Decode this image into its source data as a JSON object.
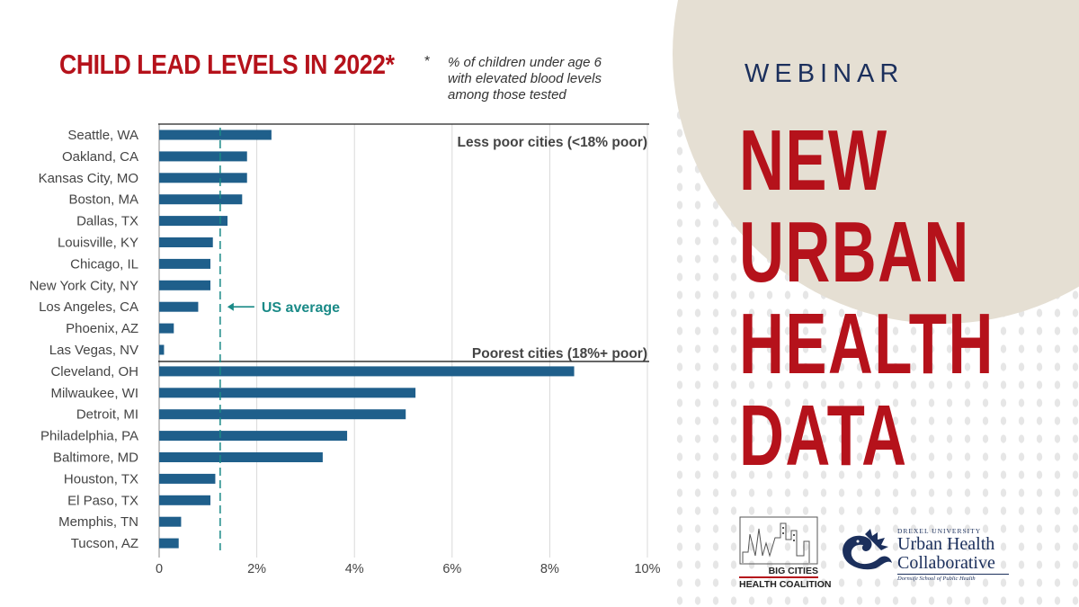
{
  "colors": {
    "title_red": "#b5121b",
    "bar_blue": "#1f5f8b",
    "avg_teal": "#1a8a87",
    "navy": "#1b2f5c",
    "beige": "#e5dfd3",
    "dots": "#e6e6e6",
    "grid": "#d9d9d9",
    "text_gray": "#444444"
  },
  "chart_title": "CHILD LEAD LEVELS IN 2022*",
  "footnote": {
    "mark": "*",
    "lines": [
      "% of children under age 6",
      "with elevated blood levels",
      "among those tested"
    ]
  },
  "chart_data": {
    "type": "bar",
    "orientation": "horizontal",
    "categories": [
      "Seattle, WA",
      "Oakland, CA",
      "Kansas City, MO",
      "Boston, MA",
      "Dallas, TX",
      "Louisville, KY",
      "Chicago, IL",
      "New York City, NY",
      "Los Angeles, CA",
      "Phoenix, AZ",
      "Las Vegas, NV",
      "Cleveland, OH",
      "Milwaukee, WI",
      "Detroit, MI",
      "Philadelphia, PA",
      "Baltimore, MD",
      "Houston, TX",
      "El Paso, TX",
      "Memphis, TN",
      "Tucson, AZ"
    ],
    "values": [
      2.3,
      1.8,
      1.8,
      1.7,
      1.4,
      1.1,
      1.05,
      1.05,
      0.8,
      0.3,
      0.1,
      8.5,
      5.25,
      5.05,
      3.85,
      3.35,
      1.15,
      1.05,
      0.45,
      0.4
    ],
    "groups": [
      {
        "label": "Less poor cities (<18% poor)",
        "start": 0,
        "count": 11
      },
      {
        "label": "Poorest cities (18%+ poor)",
        "start": 11,
        "count": 9
      }
    ],
    "xlim": [
      0,
      10
    ],
    "xticks": [
      0,
      2,
      4,
      6,
      8,
      10
    ],
    "xtick_labels": [
      "0",
      "2%",
      "4%",
      "6%",
      "8%",
      "10%"
    ],
    "reference_line": {
      "value": 1.25,
      "label": "US average"
    },
    "grid": "vertical"
  },
  "webinar": {
    "kicker": "WEBINAR",
    "headline": [
      "NEW",
      "URBAN",
      "HEALTH",
      "DATA"
    ]
  },
  "logos": {
    "bchc": [
      "BIG CITIES",
      "HEALTH COALITION"
    ],
    "uhc": {
      "university": "DREXEL UNIVERSITY",
      "line1": "Urban Health",
      "line2": "Collaborative",
      "school": "Dornsife School of Public Health"
    }
  }
}
